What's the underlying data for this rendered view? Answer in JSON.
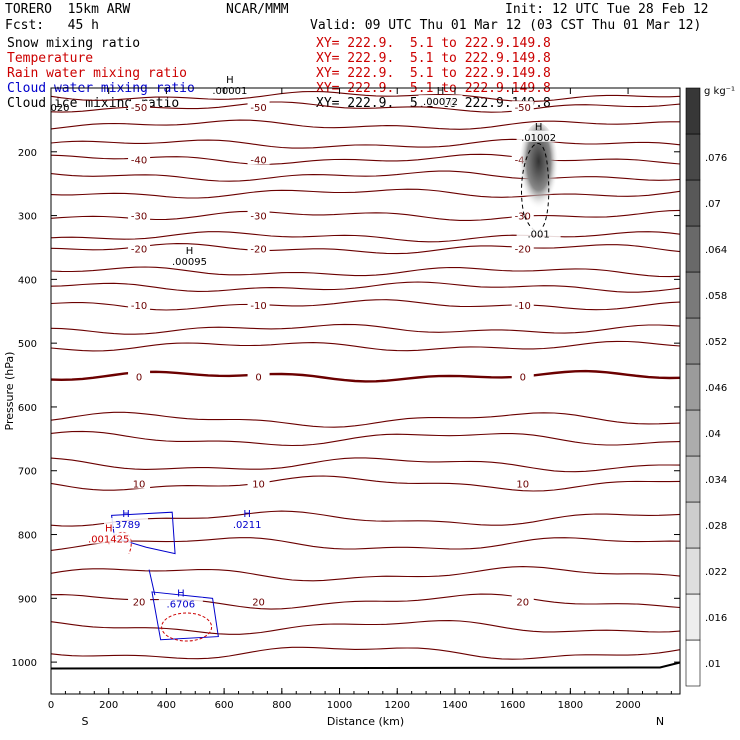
{
  "header": {
    "model": "TORERO  15km ARW",
    "center": "NCAR/MMM",
    "init": "Init: 12 UTC Tue 28 Feb 12",
    "fcst": "Fcst:   45 h",
    "valid": "Valid: 09 UTC Thu 01 Mar 12 (03 CST Thu 01 Mar 12)"
  },
  "legend": [
    {
      "name": "Snow mixing ratio",
      "color": "#000000",
      "xy": "XY= 222.9.  5.1 to 222.9.149.8",
      "xy_color": "#cc0000"
    },
    {
      "name": "Temperature",
      "color": "#cc0000",
      "xy": "XY= 222.9.  5.1 to 222.9.149.8",
      "xy_color": "#cc0000"
    },
    {
      "name": "Rain water mixing ratio",
      "color": "#cc0000",
      "xy": "XY= 222.9.  5.1 to 222.9.149.8",
      "xy_color": "#cc0000"
    },
    {
      "name": "Cloud water mixing ratio",
      "color": "#0000cc",
      "xy": "XY= 222.9.  5.1 to 222.9.149.8",
      "xy_color": "#cc0000"
    },
    {
      "name": "Cloud ice mixing ratio",
      "color": "#000000",
      "xy": "XY= 222.9.  5.1 to 222.9.149.8",
      "xy_color": "#000000"
    }
  ],
  "chart_data": {
    "type": "contour",
    "xlabel": "Distance (km)",
    "ylabel": "Pressure (hPa)",
    "xlim": [
      0,
      2180
    ],
    "ylim": [
      1050,
      100
    ],
    "xticks": [
      0,
      200,
      400,
      600,
      800,
      1000,
      1200,
      1400,
      1600,
      1800,
      2000
    ],
    "yticks": [
      200,
      300,
      400,
      500,
      600,
      700,
      800,
      900,
      1000
    ],
    "end_labels": {
      "left": "S",
      "right": "N"
    },
    "colorbar": {
      "unit": "g kg⁻¹",
      "labels": [
        ".01",
        ".016",
        ".022",
        ".028",
        ".034",
        ".04",
        ".046",
        ".052",
        ".058",
        ".064",
        ".07",
        ".076"
      ]
    },
    "temperature_contours": [
      {
        "p": 113,
        "label": ""
      },
      {
        "p": 130,
        "label": "-50"
      },
      {
        "p": 158,
        "label": ""
      },
      {
        "p": 188,
        "label": ""
      },
      {
        "p": 212,
        "label": "-40"
      },
      {
        "p": 238,
        "label": ""
      },
      {
        "p": 265,
        "label": ""
      },
      {
        "p": 300,
        "label": "-30"
      },
      {
        "p": 333,
        "label": ""
      },
      {
        "p": 352,
        "label": "-20"
      },
      {
        "p": 388,
        "label": ""
      },
      {
        "p": 412,
        "label": ""
      },
      {
        "p": 440,
        "label": "-10"
      },
      {
        "p": 478,
        "label": ""
      },
      {
        "p": 505,
        "label": ""
      },
      {
        "p": 552,
        "label": "0"
      },
      {
        "p": 620,
        "label": ""
      },
      {
        "p": 650,
        "label": ""
      },
      {
        "p": 690,
        "label": ""
      },
      {
        "p": 720,
        "label": "10"
      },
      {
        "p": 775,
        "label": ""
      },
      {
        "p": 815,
        "label": ""
      },
      {
        "p": 862,
        "label": ""
      },
      {
        "p": 905,
        "label": "20"
      },
      {
        "p": 945,
        "label": ""
      },
      {
        "p": 985,
        "label": ""
      }
    ],
    "annotations": [
      {
        "label": "H",
        "value": ".00001",
        "x": 620,
        "p": 105,
        "color": "#000000"
      },
      {
        "label": "H",
        "value": ".00072",
        "x": 1350,
        "p": 122,
        "color": "#000000"
      },
      {
        "label": "H",
        "value": ".01002",
        "x": 1690,
        "p": 178,
        "color": "#000000"
      },
      {
        "label": "",
        "value": ".001",
        "x": 1690,
        "p": 330,
        "color": "#000000"
      },
      {
        "label": "H",
        "value": ".00095",
        "x": 480,
        "p": 373,
        "color": "#000000"
      },
      {
        "label": "H",
        "value": ".3789",
        "x": 260,
        "p": 785,
        "color": "#0000cc"
      },
      {
        "label": "H",
        "value": ".0211",
        "x": 680,
        "p": 785,
        "color": "#0000cc"
      },
      {
        "label": "H",
        "value": ".001425",
        "x": 200,
        "p": 808,
        "color": "#cc0000"
      },
      {
        "label": "H",
        "value": ".6706",
        "x": 450,
        "p": 910,
        "color": "#0000cc"
      }
    ],
    "edge_label": "020"
  }
}
